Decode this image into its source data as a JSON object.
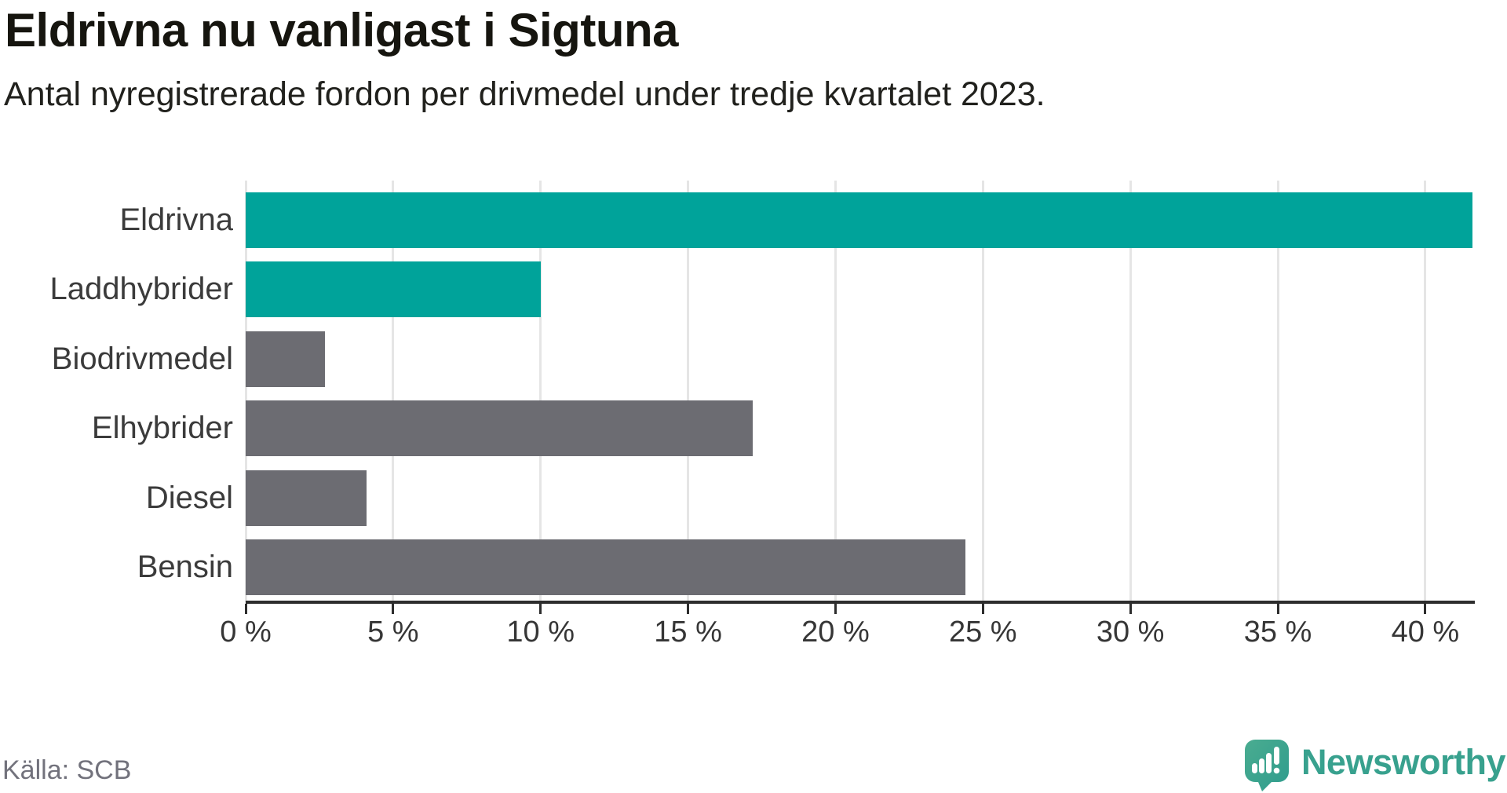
{
  "header": {
    "title": "Eldrivna nu vanligast i Sigtuna",
    "subtitle": "Antal nyregistrerade fordon per drivmedel under tredje kvartalet 2023."
  },
  "footer": {
    "source": "Källa: SCB",
    "brand": "Newsworthy"
  },
  "icons": {
    "logo": "newsworthy-speech-bubble-chart-icon"
  },
  "chart_data": {
    "type": "bar",
    "orientation": "horizontal",
    "title": "Eldrivna nu vanligast i Sigtuna",
    "subtitle": "Antal nyregistrerade fordon per drivmedel under tredje kvartalet 2023.",
    "source": "Källa: SCB",
    "categories": [
      "Eldrivna",
      "Laddhybrider",
      "Biodrivmedel",
      "Elhybrider",
      "Diesel",
      "Bensin"
    ],
    "values": [
      41.6,
      10.0,
      2.7,
      17.2,
      4.1,
      24.4
    ],
    "highlighted": [
      true,
      true,
      false,
      false,
      false,
      false
    ],
    "unit": "%",
    "xlim": [
      0,
      41.6
    ],
    "xticks": [
      0,
      5,
      10,
      15,
      20,
      25,
      30,
      35,
      40
    ],
    "xtick_labels": [
      "0 %",
      "5 %",
      "10 %",
      "15 %",
      "20 %",
      "25 %",
      "30 %",
      "35 %",
      "40 %"
    ],
    "grid": "vertical",
    "legend": "none",
    "colors": {
      "highlight": "#00a39a",
      "default": "#6c6c72",
      "gridline": "#e5e5e5",
      "axis": "#2d2d2d",
      "brand": "#38a18e"
    }
  }
}
